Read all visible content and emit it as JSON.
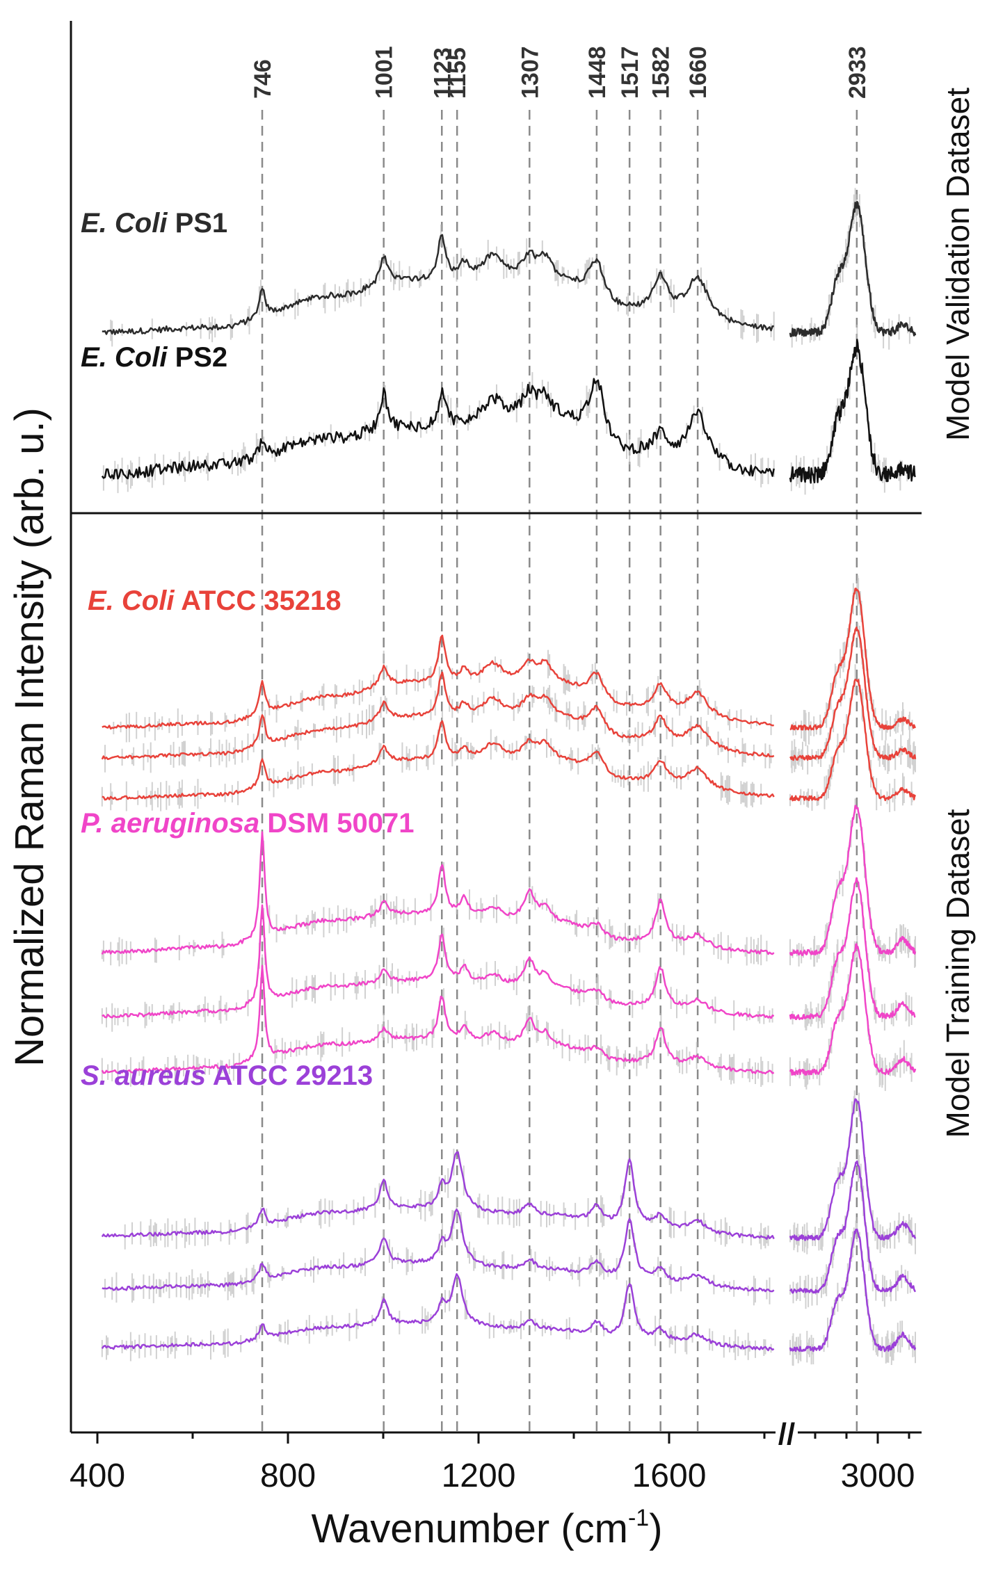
{
  "chart_data": {
    "type": "line",
    "title": "",
    "xlabel": "Wavenumber (cm",
    "xlabel_superscript": "-1",
    "xlabel_close": ")",
    "ylabel": "Normalized Raman Intensity (arb. u.)",
    "x_axis": {
      "segments": [
        [
          400,
          1820
        ],
        [
          2720,
          3120
        ]
      ],
      "ticks": [
        "400",
        "800",
        "1200",
        "1600",
        "3000"
      ],
      "break_marker": "//"
    },
    "panels": [
      {
        "title": "Model Validation Dataset"
      },
      {
        "title": "Model Training Dataset"
      }
    ],
    "peak_markers": [
      {
        "x": 746,
        "label": "746"
      },
      {
        "x": 1001,
        "label": "1001"
      },
      {
        "x": 1123,
        "label": "1123"
      },
      {
        "x": 1155,
        "label": "1155"
      },
      {
        "x": 1307,
        "label": "1307"
      },
      {
        "x": 1448,
        "label": "1448"
      },
      {
        "x": 1517,
        "label": "1517"
      },
      {
        "x": 1582,
        "label": "1582"
      },
      {
        "x": 1660,
        "label": "1660"
      },
      {
        "x": 2933,
        "label": "2933"
      }
    ],
    "groups": [
      {
        "id": "ps1",
        "panel": 0,
        "italic": "E. Coli",
        "rest": " PS1",
        "color": "#2b2b2b",
        "n_spectra": 1,
        "noise": 0.06,
        "baseline": [
          [
            400,
            0.0
          ],
          [
            650,
            0.1
          ],
          [
            900,
            0.75
          ],
          [
            1050,
            1.05
          ],
          [
            1350,
            1.05
          ],
          [
            1500,
            0.4
          ],
          [
            1820,
            0.05
          ]
        ],
        "peaks": [
          [
            746,
            0.6,
            7
          ],
          [
            1001,
            0.55,
            10
          ],
          [
            1123,
            0.9,
            10
          ],
          [
            1170,
            0.3,
            12
          ],
          [
            1230,
            0.5,
            25
          ],
          [
            1307,
            0.45,
            18
          ],
          [
            1340,
            0.4,
            15
          ],
          [
            1448,
            0.85,
            22
          ],
          [
            1582,
            0.75,
            18
          ],
          [
            1660,
            0.85,
            28
          ]
        ],
        "ch_peak": 2.6,
        "ch_shoulder": 1.0,
        "ch_width": 38,
        "ch_tail": 0.15
      },
      {
        "id": "ps2",
        "panel": 0,
        "italic": "E. Coli",
        "rest": " PS2",
        "color": "#111111",
        "n_spectra": 1,
        "noise": 0.12,
        "baseline": [
          [
            400,
            0.0
          ],
          [
            650,
            0.2
          ],
          [
            900,
            0.75
          ],
          [
            1050,
            0.95
          ],
          [
            1350,
            1.15
          ],
          [
            1500,
            0.4
          ],
          [
            1820,
            0.0
          ]
        ],
        "peaks": [
          [
            746,
            0.35,
            8
          ],
          [
            1001,
            0.75,
            10
          ],
          [
            1123,
            0.65,
            10
          ],
          [
            1230,
            0.45,
            25
          ],
          [
            1307,
            0.5,
            18
          ],
          [
            1340,
            0.35,
            15
          ],
          [
            1448,
            1.35,
            20
          ],
          [
            1582,
            0.45,
            18
          ],
          [
            1660,
            1.0,
            26
          ]
        ],
        "ch_peak": 2.6,
        "ch_shoulder": 1.0,
        "ch_width": 38,
        "ch_tail": 0.15
      },
      {
        "id": "ecoli",
        "panel": 1,
        "italic": "E. Coli",
        "rest": " ATCC 35218",
        "color": "#e8423a",
        "n_spectra": 3,
        "noise": 0.04,
        "baseline": [
          [
            400,
            0.0
          ],
          [
            650,
            0.1
          ],
          [
            900,
            0.75
          ],
          [
            1050,
            1.05
          ],
          [
            1350,
            1.05
          ],
          [
            1500,
            0.45
          ],
          [
            1820,
            0.05
          ]
        ],
        "peaks": [
          [
            746,
            0.8,
            7
          ],
          [
            1001,
            0.45,
            10
          ],
          [
            1123,
            1.1,
            9
          ],
          [
            1170,
            0.3,
            10
          ],
          [
            1230,
            0.45,
            25
          ],
          [
            1307,
            0.45,
            18
          ],
          [
            1340,
            0.4,
            15
          ],
          [
            1448,
            0.65,
            20
          ],
          [
            1582,
            0.6,
            16
          ],
          [
            1660,
            0.55,
            26
          ]
        ],
        "ch_peak": 3.3,
        "ch_shoulder": 1.2,
        "ch_width": 36,
        "ch_tail": 0.2
      },
      {
        "id": "paeru",
        "panel": 1,
        "italic": "P. aeruginosa",
        "rest": " DSM 50071",
        "color": "#f045c8",
        "n_spectra": 3,
        "noise": 0.05,
        "baseline": [
          [
            400,
            0.0
          ],
          [
            650,
            0.15
          ],
          [
            900,
            0.85
          ],
          [
            1050,
            1.0
          ],
          [
            1350,
            0.8
          ],
          [
            1500,
            0.3
          ],
          [
            1820,
            0.0
          ]
        ],
        "peaks": [
          [
            746,
            2.8,
            6
          ],
          [
            1001,
            0.35,
            10
          ],
          [
            1123,
            1.3,
            9
          ],
          [
            1170,
            0.45,
            10
          ],
          [
            1230,
            0.3,
            20
          ],
          [
            1307,
            0.75,
            14
          ],
          [
            1340,
            0.35,
            12
          ],
          [
            1448,
            0.3,
            18
          ],
          [
            1582,
            1.1,
            12
          ],
          [
            1660,
            0.3,
            22
          ]
        ],
        "ch_peak": 3.8,
        "ch_shoulder": 1.5,
        "ch_width": 36,
        "ch_tail": 0.35
      },
      {
        "id": "saureus",
        "panel": 1,
        "italic": "S. aureus",
        "rest": " ATCC 29213",
        "color": "#9b40d8",
        "n_spectra": 3,
        "noise": 0.05,
        "baseline": [
          [
            400,
            0.05
          ],
          [
            650,
            0.15
          ],
          [
            900,
            0.7
          ],
          [
            1050,
            0.8
          ],
          [
            1350,
            0.6
          ],
          [
            1500,
            0.3
          ],
          [
            1820,
            0.0
          ]
        ],
        "peaks": [
          [
            746,
            0.5,
            7
          ],
          [
            1001,
            0.8,
            10
          ],
          [
            1123,
            0.55,
            9
          ],
          [
            1155,
            1.6,
            14
          ],
          [
            1307,
            0.3,
            14
          ],
          [
            1448,
            0.45,
            15
          ],
          [
            1517,
            1.8,
            12
          ],
          [
            1582,
            0.35,
            12
          ],
          [
            1660,
            0.3,
            22
          ]
        ],
        "ch_peak": 3.8,
        "ch_shoulder": 1.5,
        "ch_width": 34,
        "ch_tail": 0.4
      }
    ]
  }
}
